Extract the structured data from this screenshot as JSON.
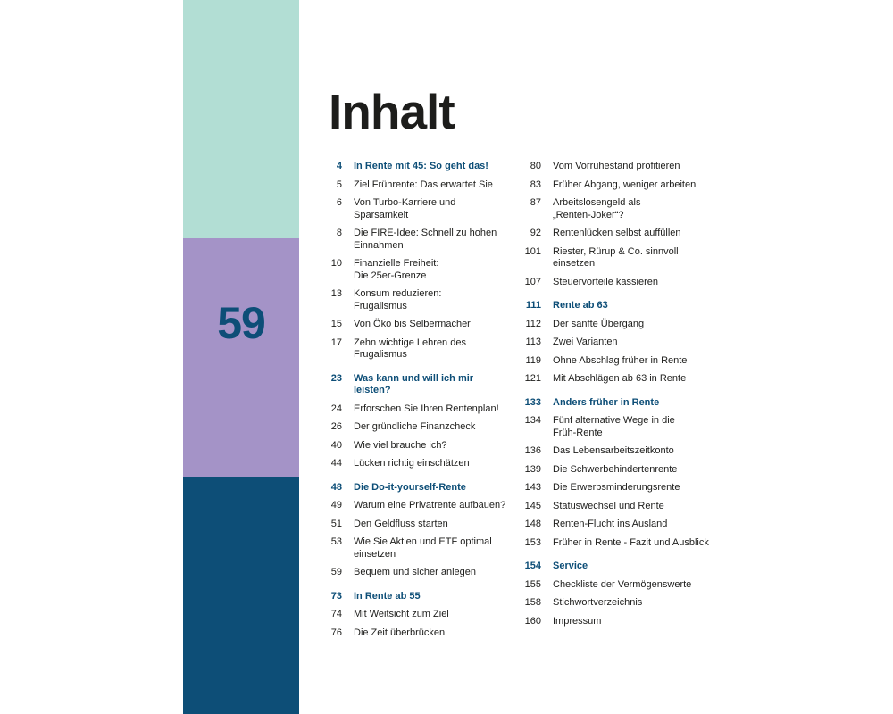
{
  "colors": {
    "band_top": "#b2ded4",
    "band_middle": "#a493c7",
    "band_bottom": "#0d4e77",
    "page_number": "#0d4e77",
    "heading": "#0d4e77"
  },
  "side_page_number": "59",
  "title": "Inhalt",
  "toc": {
    "left": [
      {
        "page": "4",
        "text": "In Rente mit 45: So geht das!",
        "heading": true
      },
      {
        "page": "5",
        "text": "Ziel Frührente: Das erwartet Sie"
      },
      {
        "page": "6",
        "text": "Von Turbo-Karriere und\nSparsamkeit"
      },
      {
        "page": "8",
        "text": "Die FIRE-Idee: Schnell zu hohen\nEinnahmen"
      },
      {
        "page": "10",
        "text": "Finanzielle Freiheit:\nDie 25er-Grenze"
      },
      {
        "page": "13",
        "text": "Konsum reduzieren:\nFrugalismus"
      },
      {
        "page": "15",
        "text": "Von Öko bis Selbermacher"
      },
      {
        "page": "17",
        "text": "Zehn wichtige Lehren des\nFrugalismus"
      },
      {
        "page": "23",
        "text": "Was kann und will ich mir\nleisten?",
        "heading": true
      },
      {
        "page": "24",
        "text": "Erforschen Sie Ihren Rentenplan!"
      },
      {
        "page": "26",
        "text": "Der gründliche Finanzcheck"
      },
      {
        "page": "40",
        "text": "Wie viel brauche ich?"
      },
      {
        "page": "44",
        "text": "Lücken richtig einschätzen"
      },
      {
        "page": "48",
        "text": "Die Do-it-yourself-Rente",
        "heading": true
      },
      {
        "page": "49",
        "text": "Warum eine Privatrente aufbauen?"
      },
      {
        "page": "51",
        "text": "Den Geldfluss starten"
      },
      {
        "page": "53",
        "text": "Wie Sie Aktien und ETF optimal\neinsetzen"
      },
      {
        "page": "59",
        "text": "Bequem und sicher anlegen"
      },
      {
        "page": "73",
        "text": "In Rente ab 55",
        "heading": true
      },
      {
        "page": "74",
        "text": "Mit Weitsicht zum Ziel"
      },
      {
        "page": "76",
        "text": "Die Zeit überbrücken"
      }
    ],
    "right": [
      {
        "page": "80",
        "text": "Vom Vorruhestand profitieren"
      },
      {
        "page": "83",
        "text": "Früher Abgang, weniger arbeiten"
      },
      {
        "page": "87",
        "text": "Arbeitslosengeld als\n„Renten-Joker“?"
      },
      {
        "page": "92",
        "text": "Rentenlücken selbst auffüllen"
      },
      {
        "page": "101",
        "text": "Riester, Rürup & Co. sinnvoll\neinsetzen"
      },
      {
        "page": "107",
        "text": "Steuervorteile kassieren"
      },
      {
        "page": "111",
        "text": "Rente ab 63",
        "heading": true
      },
      {
        "page": "112",
        "text": "Der sanfte Übergang"
      },
      {
        "page": "113",
        "text": "Zwei Varianten"
      },
      {
        "page": "119",
        "text": "Ohne Abschlag früher in Rente"
      },
      {
        "page": "121",
        "text": "Mit Abschlägen ab 63 in Rente"
      },
      {
        "page": "133",
        "text": "Anders früher in Rente",
        "heading": true
      },
      {
        "page": "134",
        "text": "Fünf alternative Wege in die\nFrüh-Rente"
      },
      {
        "page": "136",
        "text": "Das Lebensarbeitszeitkonto"
      },
      {
        "page": "139",
        "text": "Die Schwerbehindertenrente"
      },
      {
        "page": "143",
        "text": "Die Erwerbsminderungsrente"
      },
      {
        "page": "145",
        "text": "Statuswechsel und Rente"
      },
      {
        "page": "148",
        "text": "Renten-Flucht ins Ausland"
      },
      {
        "page": "153",
        "text": "Früher in Rente - Fazit und Ausblick"
      },
      {
        "page": "154",
        "text": "Service",
        "heading": true
      },
      {
        "page": "155",
        "text": "Checkliste der Vermögenswerte"
      },
      {
        "page": "158",
        "text": "Stichwortverzeichnis"
      },
      {
        "page": "160",
        "text": "Impressum"
      }
    ]
  }
}
